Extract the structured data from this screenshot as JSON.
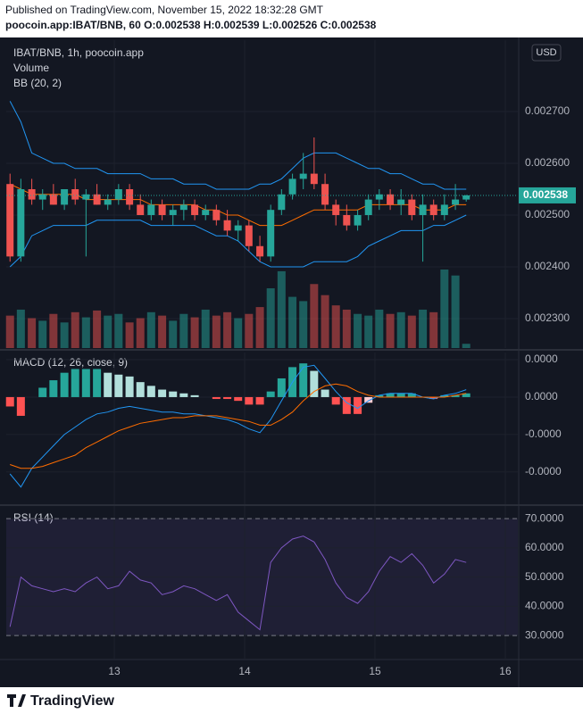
{
  "header": {
    "line1": "Published on TradingView.com, November 15, 2022 18:32:28 GMT",
    "line2": "poocoin.app:IBAT/BNB, 60 O:0.002538 H:0.002539 L:0.002526 C:0.002538"
  },
  "footer": {
    "brand": "TradingView"
  },
  "chart_data": [
    {
      "type": "candlestick",
      "legend": [
        "IBAT/BNB, 1h, poocoin.app",
        "Volume",
        "BB (20, 2)"
      ],
      "currency": "USD",
      "x": [
        12.2,
        12.283,
        12.367,
        12.45,
        12.533,
        12.617,
        12.7,
        12.783,
        12.867,
        12.95,
        13.033,
        13.117,
        13.2,
        13.283,
        13.367,
        13.45,
        13.533,
        13.617,
        13.7,
        13.783,
        13.867,
        13.95,
        14.033,
        14.117,
        14.2,
        14.283,
        14.367,
        14.45,
        14.533,
        14.617,
        14.7,
        14.783,
        14.867,
        14.95,
        15.033,
        15.117,
        15.2,
        15.283,
        15.367,
        15.45,
        15.533,
        15.617,
        15.7
      ],
      "open": [
        0.00256,
        0.00242,
        0.00255,
        0.00253,
        0.00254,
        0.00252,
        0.00255,
        0.00253,
        0.00254,
        0.00252,
        0.00253,
        0.00255,
        0.00252,
        0.0025,
        0.00252,
        0.0025,
        0.00251,
        0.00252,
        0.0025,
        0.00251,
        0.00249,
        0.00247,
        0.00248,
        0.00244,
        0.00242,
        0.00251,
        0.00254,
        0.00257,
        0.00258,
        0.00256,
        0.00252,
        0.0025,
        0.00248,
        0.0025,
        0.00253,
        0.00254,
        0.00252,
        0.00253,
        0.0025,
        0.00252,
        0.0025,
        0.00252,
        0.00253
      ],
      "high": [
        0.00258,
        0.00257,
        0.00257,
        0.00255,
        0.00256,
        0.00255,
        0.00257,
        0.00255,
        0.00256,
        0.00254,
        0.00256,
        0.00256,
        0.00254,
        0.00253,
        0.00253,
        0.00252,
        0.00253,
        0.00253,
        0.00252,
        0.00252,
        0.00251,
        0.00249,
        0.00249,
        0.00246,
        0.00252,
        0.00255,
        0.00258,
        0.00262,
        0.00265,
        0.00258,
        0.00253,
        0.00252,
        0.00251,
        0.00254,
        0.00255,
        0.00255,
        0.00255,
        0.00254,
        0.00254,
        0.00253,
        0.00254,
        0.00256,
        0.002539
      ],
      "low": [
        0.00241,
        0.00241,
        0.00252,
        0.00251,
        0.00252,
        0.00251,
        0.00252,
        0.00242,
        0.00252,
        0.00251,
        0.00252,
        0.00251,
        0.0025,
        0.00249,
        0.00249,
        0.00248,
        0.00249,
        0.00249,
        0.00249,
        0.00248,
        0.00246,
        0.00245,
        0.00243,
        0.00241,
        0.00241,
        0.0025,
        0.00253,
        0.00255,
        0.00255,
        0.00251,
        0.00248,
        0.00247,
        0.00247,
        0.00249,
        0.00251,
        0.00251,
        0.0025,
        0.00249,
        0.00241,
        0.00249,
        0.00249,
        0.00251,
        0.002526
      ],
      "close": [
        0.00242,
        0.00255,
        0.00253,
        0.00254,
        0.00252,
        0.00255,
        0.00253,
        0.00254,
        0.00252,
        0.00253,
        0.00255,
        0.00252,
        0.0025,
        0.00252,
        0.0025,
        0.00251,
        0.00252,
        0.0025,
        0.00251,
        0.00249,
        0.00247,
        0.00248,
        0.00244,
        0.00242,
        0.00251,
        0.00254,
        0.00257,
        0.00258,
        0.00256,
        0.00252,
        0.0025,
        0.00248,
        0.0025,
        0.00253,
        0.00254,
        0.00252,
        0.00253,
        0.0025,
        0.00252,
        0.0025,
        0.00252,
        0.00253,
        0.002538
      ],
      "volume": [
        38,
        45,
        35,
        32,
        40,
        30,
        42,
        36,
        44,
        38,
        40,
        30,
        35,
        42,
        38,
        32,
        40,
        36,
        45,
        38,
        42,
        35,
        40,
        48,
        70,
        90,
        60,
        55,
        75,
        62,
        50,
        45,
        40,
        38,
        45,
        40,
        42,
        38,
        45,
        42,
        92,
        85,
        5
      ],
      "bb": {
        "upper": [
          0.00272,
          0.00268,
          0.00262,
          0.00261,
          0.0026,
          0.0026,
          0.00259,
          0.00259,
          0.00259,
          0.00258,
          0.00258,
          0.00258,
          0.00258,
          0.00257,
          0.00257,
          0.00257,
          0.00256,
          0.00256,
          0.00256,
          0.00255,
          0.00255,
          0.00255,
          0.00255,
          0.00256,
          0.00256,
          0.00257,
          0.00259,
          0.00261,
          0.00262,
          0.00262,
          0.00262,
          0.00261,
          0.0026,
          0.00259,
          0.00259,
          0.00258,
          0.00258,
          0.00257,
          0.00256,
          0.00256,
          0.00255,
          0.00255,
          0.00255
        ],
        "middle": [
          0.00256,
          0.00255,
          0.00254,
          0.00254,
          0.00254,
          0.00254,
          0.00254,
          0.00253,
          0.00253,
          0.00253,
          0.00253,
          0.00253,
          0.00253,
          0.00252,
          0.00252,
          0.00252,
          0.00252,
          0.00252,
          0.00251,
          0.00251,
          0.0025,
          0.0025,
          0.00249,
          0.00248,
          0.00248,
          0.00248,
          0.00249,
          0.0025,
          0.00251,
          0.00251,
          0.00251,
          0.00251,
          0.00251,
          0.00252,
          0.00252,
          0.00252,
          0.00252,
          0.00252,
          0.00251,
          0.00251,
          0.00251,
          0.00252,
          0.00252
        ],
        "lower": [
          0.0024,
          0.00242,
          0.00246,
          0.00247,
          0.00248,
          0.00248,
          0.00248,
          0.00248,
          0.00249,
          0.00249,
          0.00249,
          0.00249,
          0.00249,
          0.00248,
          0.00248,
          0.00248,
          0.00248,
          0.00248,
          0.00247,
          0.00246,
          0.00246,
          0.00245,
          0.00243,
          0.00241,
          0.0024,
          0.0024,
          0.0024,
          0.0024,
          0.00241,
          0.00241,
          0.00241,
          0.00241,
          0.00242,
          0.00244,
          0.00245,
          0.00246,
          0.00247,
          0.00247,
          0.00247,
          0.00248,
          0.00248,
          0.00249,
          0.0025
        ]
      },
      "colors": {
        "up": "#26a69a",
        "down": "#ef5350",
        "bb_band": "#2196f3",
        "bb_basis": "#ff6d00"
      },
      "xlim": [
        12.171,
        16.096
      ],
      "xticks": [
        13,
        14,
        15,
        16
      ],
      "ylim": [
        0.002243,
        0.002838
      ],
      "yticks": [
        {
          "value": 0.0023,
          "label": "0.002300"
        },
        {
          "value": 0.0024,
          "label": "0.002400"
        },
        {
          "value": 0.0025,
          "label": "0.002500"
        },
        {
          "value": 0.0026,
          "label": "0.002600"
        },
        {
          "value": 0.0027,
          "label": "0.002700"
        }
      ]
    },
    {
      "type": "macd",
      "title": "MACD (12, 26, close, 9)",
      "macd": [
        -2.05e-05,
        -2.4e-05,
        -1.9e-05,
        -1.6e-05,
        -1.3e-05,
        -1e-05,
        -8e-06,
        -6e-06,
        -4.5e-06,
        -4e-06,
        -3e-06,
        -2.5e-06,
        -3e-06,
        -3.5e-06,
        -4e-06,
        -4e-06,
        -4.5e-06,
        -4.5e-06,
        -5e-06,
        -5.5e-06,
        -6e-06,
        -7e-06,
        -8.5e-06,
        -9.5e-06,
        -6e-06,
        -1e-06,
        4e-06,
        8e-06,
        8.5e-06,
        5e-06,
        1.5e-06,
        -1.5e-06,
        -3e-06,
        -1e-06,
        5e-07,
        1e-06,
        1e-06,
        1e-06,
        0,
        -5e-07,
        5e-07,
        1e-06,
        2e-06
      ],
      "signal": [
        -1.8e-05,
        -1.9e-05,
        -1.9e-05,
        -1.85e-05,
        -1.75e-05,
        -1.65e-05,
        -1.55e-05,
        -1.35e-05,
        -1.2e-05,
        -1.05e-05,
        -9e-06,
        -8e-06,
        -7e-06,
        -6.5e-06,
        -6e-06,
        -5.5e-06,
        -5.5e-06,
        -5e-06,
        -5e-06,
        -5e-06,
        -5.5e-06,
        -6e-06,
        -6.5e-06,
        -7.5e-06,
        -7.5e-06,
        -6e-06,
        -4e-06,
        -1e-06,
        1.5e-06,
        3e-06,
        3.5e-06,
        3e-06,
        1.5e-06,
        5e-07,
        0,
        0,
        0,
        0,
        0,
        0,
        0,
        5e-07,
        1e-06
      ],
      "histogram": [
        -2.5e-06,
        -5e-06,
        0,
        2.5e-06,
        4.5e-06,
        6.5e-06,
        7.5e-06,
        7.5e-06,
        7.5e-06,
        6.5e-06,
        6e-06,
        5.5e-06,
        4e-06,
        3e-06,
        2e-06,
        1.5e-06,
        1e-06,
        5e-07,
        0,
        -5e-07,
        -5e-07,
        -1e-06,
        -2e-06,
        -2e-06,
        1.5e-06,
        5e-06,
        8e-06,
        9e-06,
        7e-06,
        2e-06,
        -2e-06,
        -4.5e-06,
        -4.5e-06,
        -1.5e-06,
        5e-07,
        1e-06,
        1e-06,
        1e-06,
        0,
        -5e-07,
        5e-07,
        5e-07,
        1e-06
      ],
      "colors": {
        "macd": "#2196f3",
        "signal": "#ff6d00",
        "grow_above": "#26a69a",
        "fall_above": "#b2dfdb",
        "grow_below": "#ffcdd2",
        "fall_below": "#ff5252"
      },
      "ylim": [
        -2.86e-05,
        1.19e-05
      ],
      "yticks": [
        {
          "value": -2e-05,
          "label": "-0.0000"
        },
        {
          "value": -1e-05,
          "label": "-0.0000"
        },
        {
          "value": 0,
          "label": "0.0000"
        },
        {
          "value": 1e-05,
          "label": "0.0000"
        }
      ]
    },
    {
      "type": "line",
      "title": "RSI (14)",
      "values": [
        33,
        50,
        47,
        46,
        45,
        46,
        45,
        48,
        50,
        46,
        47,
        52,
        49,
        48,
        44,
        45,
        47,
        46,
        44,
        42,
        44,
        38,
        35,
        32,
        55,
        60,
        63,
        64,
        62,
        56,
        48,
        43,
        41,
        45,
        52,
        57,
        55,
        58,
        54,
        48,
        51,
        56,
        55
      ],
      "color": "#7e57c2",
      "band": [
        30,
        70
      ],
      "ylim": [
        22.1,
        74.3
      ],
      "yticks": [
        {
          "value": 30,
          "label": "30.0000"
        },
        {
          "value": 40,
          "label": "40.0000"
        },
        {
          "value": 50,
          "label": "50.0000"
        },
        {
          "value": 60,
          "label": "60.0000"
        },
        {
          "value": 70,
          "label": "70.0000"
        }
      ]
    }
  ]
}
